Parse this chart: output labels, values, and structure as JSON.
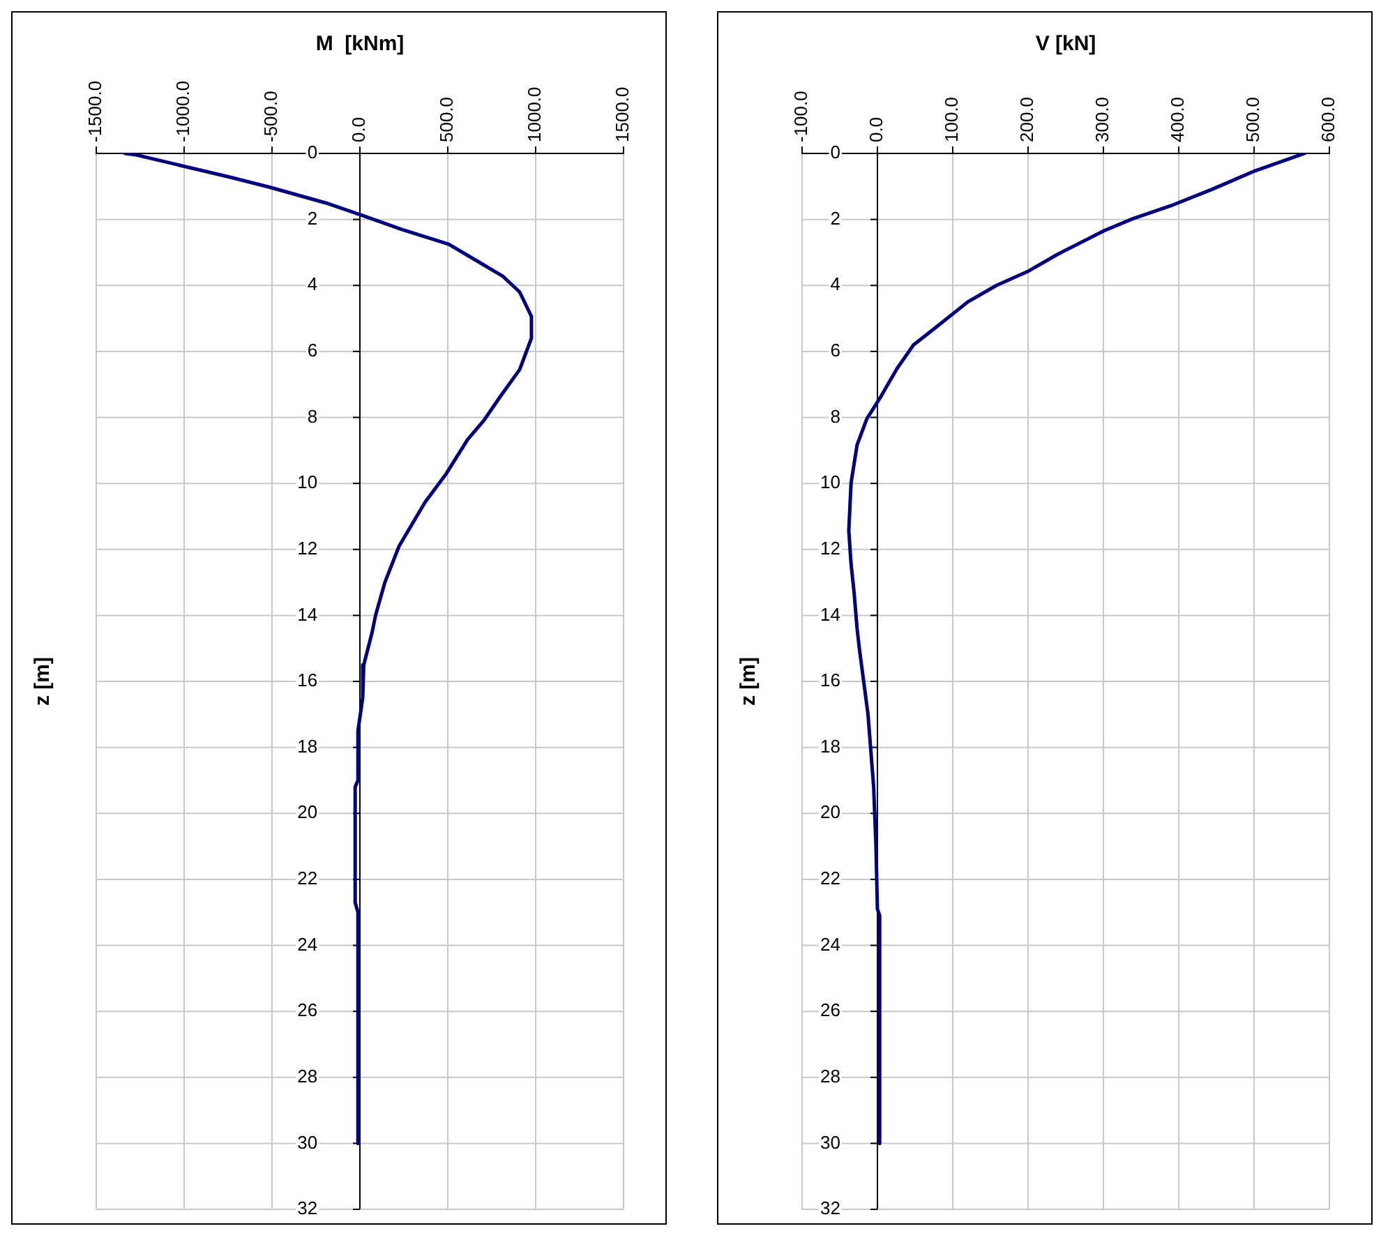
{
  "chart_data": [
    {
      "type": "line",
      "title": "M  [kNm]",
      "ylabel": "z [m]",
      "color": "#000080",
      "marker": "none",
      "grid": true,
      "x": [
        -1336,
        -1269,
        -731,
        -516,
        -194,
        8,
        237,
        505,
        667,
        815,
        909,
        976,
        976,
        909,
        801,
        707,
        613,
        492,
        371,
        223,
        142,
        89,
        70,
        22,
        16,
        -11,
        -11,
        -27,
        -27,
        -11,
        -11
      ],
      "values": [
        0,
        0.05,
        0.73,
        1.02,
        1.5,
        1.87,
        2.3,
        2.75,
        3.26,
        3.73,
        4.2,
        4.94,
        5.6,
        6.55,
        7.35,
        8.08,
        8.67,
        9.7,
        10.57,
        11.9,
        13,
        14,
        14.5,
        15.5,
        16.5,
        17.5,
        19,
        19.2,
        22.7,
        23,
        30
      ],
      "xlim": [
        -1500,
        1500
      ],
      "xticks": [
        {
          "value": -1500,
          "label": "-1500.0"
        },
        {
          "value": -1000,
          "label": "-1000.0"
        },
        {
          "value": -500,
          "label": "-500.0"
        },
        {
          "value": 0,
          "label": "0.0"
        },
        {
          "value": 500,
          "label": "500.0"
        },
        {
          "value": 1000,
          "label": "1000.0"
        },
        {
          "value": 1500,
          "label": "1500.0"
        }
      ],
      "ylim": [
        32,
        0
      ],
      "yticks": [
        0,
        2,
        4,
        6,
        8,
        10,
        12,
        14,
        16,
        18,
        20,
        22,
        24,
        26,
        28,
        30,
        32
      ]
    },
    {
      "type": "line",
      "title": "V [kN]",
      "ylabel": "z [m]",
      "color": "#000080",
      "marker": "none",
      "grid": true,
      "x": [
        567,
        501,
        445,
        389,
        339,
        301,
        239,
        201,
        158,
        120,
        76,
        48,
        26,
        4,
        -14,
        -27,
        -35,
        -38,
        -35,
        -31,
        -27,
        -24,
        -12.5,
        -5,
        -2,
        0,
        3,
        3
      ],
      "values": [
        0,
        0.53,
        1.08,
        1.59,
        1.98,
        2.34,
        3.06,
        3.56,
        4.0,
        4.5,
        5.3,
        5.8,
        6.52,
        7.39,
        8.04,
        8.83,
        9.99,
        11.43,
        12.44,
        13.3,
        14.4,
        15.0,
        17.0,
        19.2,
        20.95,
        22.9,
        23.1,
        30
      ],
      "xlim": [
        -100,
        600
      ],
      "xticks": [
        {
          "value": -100,
          "label": "-100.0"
        },
        {
          "value": 0,
          "label": "0.0"
        },
        {
          "value": 100,
          "label": "100.0"
        },
        {
          "value": 200,
          "label": "200.0"
        },
        {
          "value": 300,
          "label": "300.0"
        },
        {
          "value": 400,
          "label": "400.0"
        },
        {
          "value": 500,
          "label": "500.0"
        },
        {
          "value": 600,
          "label": "600.0"
        }
      ],
      "ylim": [
        32,
        0
      ],
      "yticks": [
        0,
        2,
        4,
        6,
        8,
        10,
        12,
        14,
        16,
        18,
        20,
        22,
        24,
        26,
        28,
        30,
        32
      ]
    }
  ]
}
